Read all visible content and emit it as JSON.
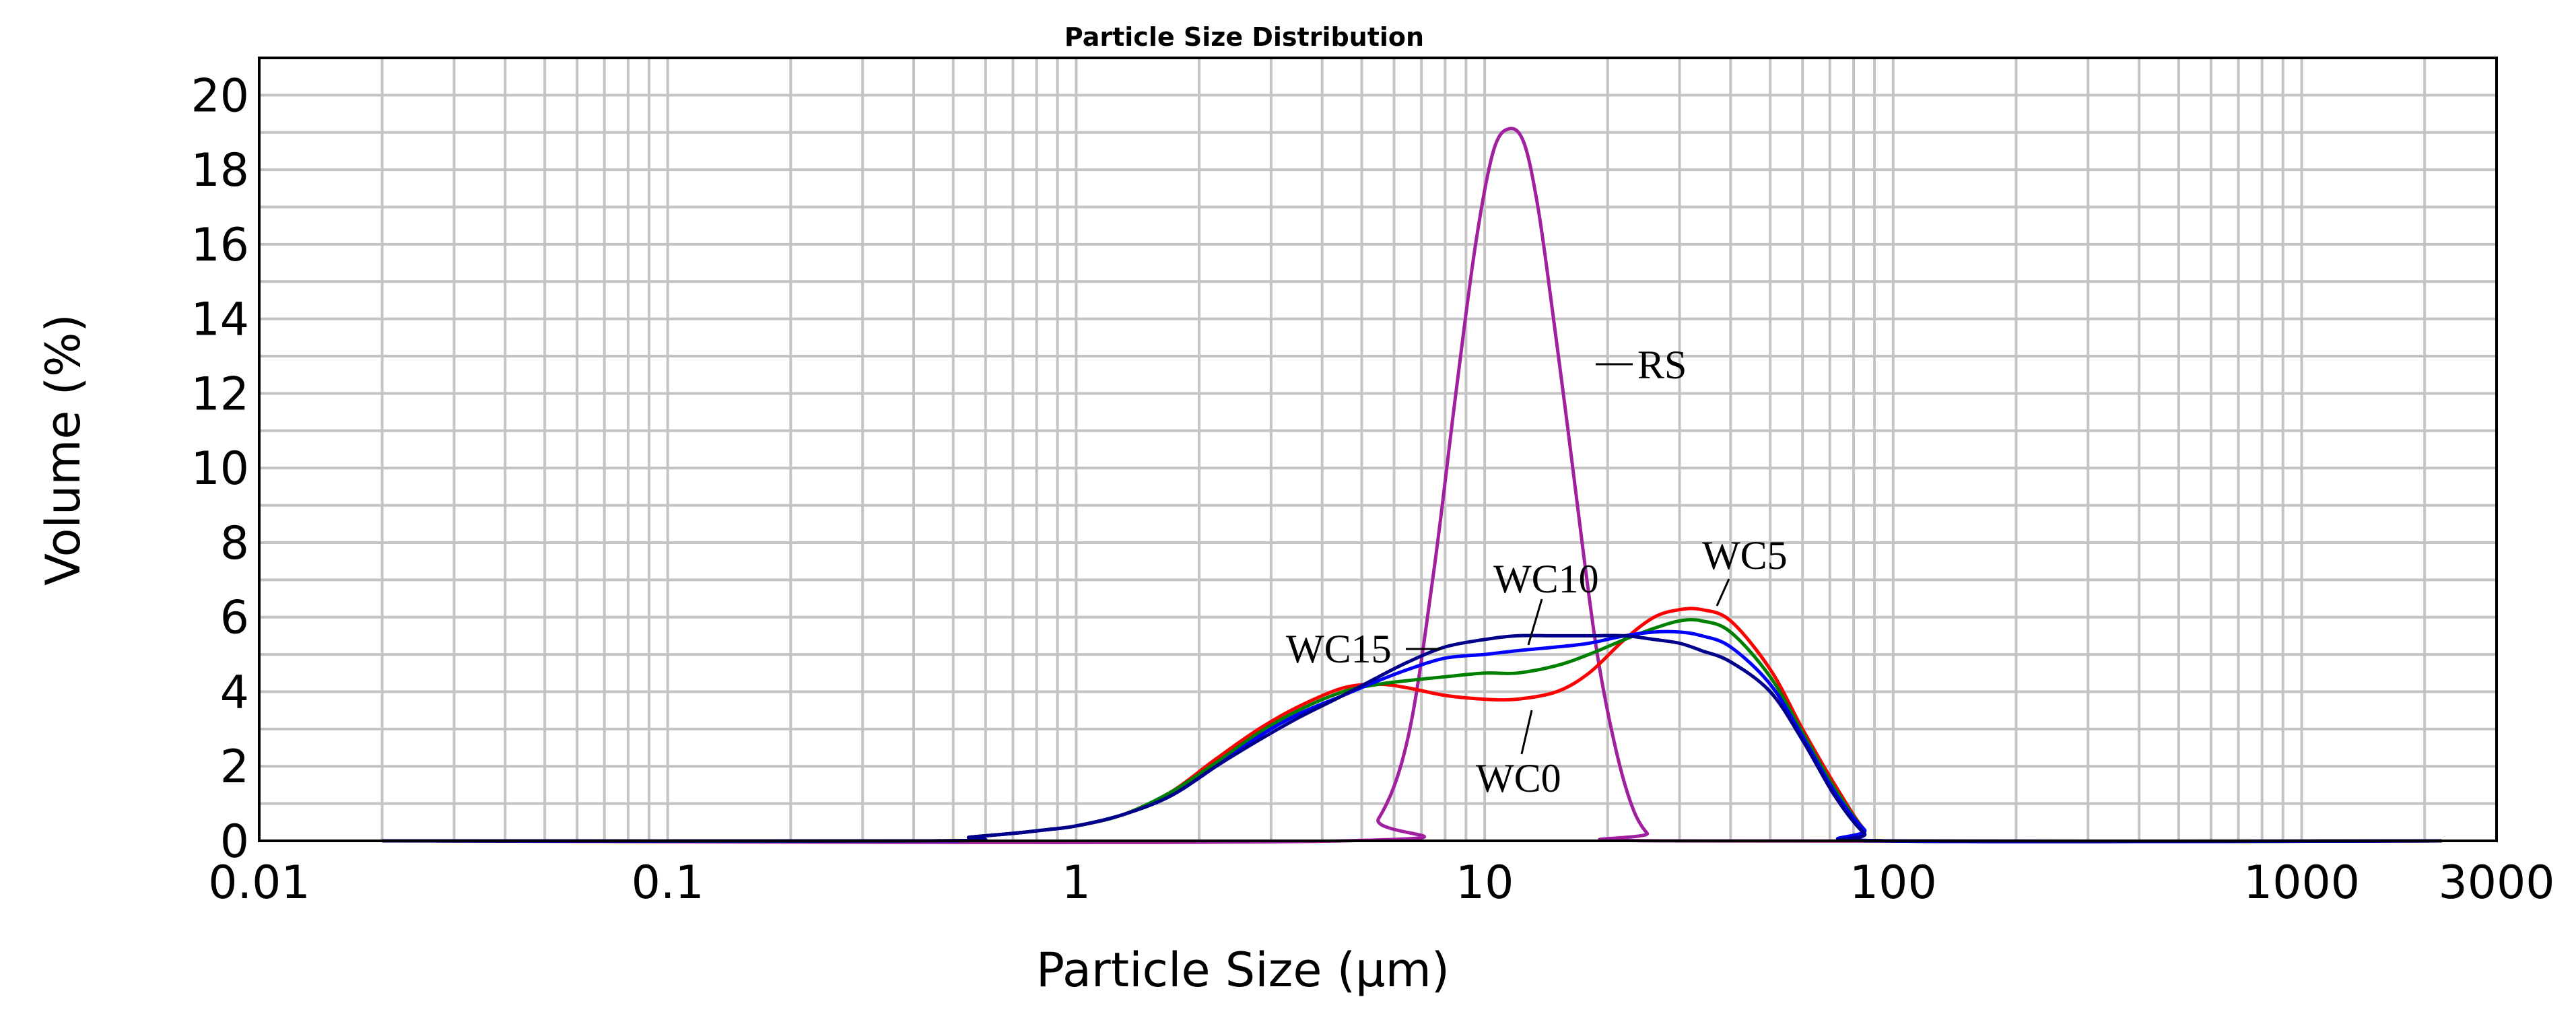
{
  "chart_data": {
    "type": "line",
    "title": "Particle Size Distribution",
    "xlabel": "Particle Size (µm)",
    "ylabel": "Volume (%)",
    "xscale": "log",
    "xlim": [
      0.01,
      3000
    ],
    "ylim": [
      0,
      21
    ],
    "xticks": [
      0.01,
      0.1,
      1,
      10,
      100,
      1000,
      3000
    ],
    "xtick_labels": [
      "0.01",
      "0.1",
      "1",
      "10",
      "100",
      "1000",
      "3000"
    ],
    "yticks": [
      0,
      2,
      4,
      6,
      8,
      10,
      12,
      14,
      16,
      18,
      20
    ],
    "ytick_labels": [
      "0",
      "2",
      "4",
      "6",
      "8",
      "10",
      "12",
      "14",
      "16",
      "18",
      "20"
    ],
    "grid": true,
    "series": [
      {
        "name": "RS",
        "color": "#a020a0",
        "x": [
          0.02,
          4.5,
          5.5,
          6.5,
          7.5,
          8.5,
          9.5,
          10.5,
          11.5,
          12.5,
          13.5,
          14.5,
          16,
          17.5,
          19,
          21,
          23,
          25,
          27,
          2200
        ],
        "y": [
          0,
          0,
          0.6,
          2.8,
          7.2,
          12.0,
          16.0,
          18.5,
          19.1,
          18.7,
          17.0,
          14.6,
          11.0,
          7.6,
          4.8,
          2.4,
          0.9,
          0.2,
          0,
          0
        ]
      },
      {
        "name": "WC0",
        "color": "#ff0000",
        "x": [
          0.02,
          0.44,
          0.55,
          0.7,
          0.85,
          1.0,
          1.3,
          1.7,
          2.2,
          2.8,
          3.5,
          4.5,
          5.5,
          6.5,
          8,
          10,
          12,
          15,
          18,
          22,
          26,
          30,
          34,
          40,
          50,
          60,
          72,
          85,
          95,
          2200
        ],
        "y": [
          0,
          0,
          0.1,
          0.2,
          0.3,
          0.4,
          0.7,
          1.3,
          2.2,
          3.0,
          3.6,
          4.1,
          4.2,
          4.1,
          3.9,
          3.8,
          3.8,
          4.0,
          4.5,
          5.4,
          6.0,
          6.2,
          6.2,
          5.9,
          4.6,
          3.0,
          1.5,
          0.3,
          0,
          0
        ]
      },
      {
        "name": "WC5",
        "color": "#008000",
        "x": [
          0.02,
          0.45,
          0.55,
          0.7,
          0.85,
          1.0,
          1.3,
          1.7,
          2.2,
          2.8,
          3.5,
          4.5,
          5.5,
          6.5,
          8,
          10,
          12,
          15,
          18,
          22,
          26,
          30,
          34,
          40,
          50,
          60,
          72,
          85,
          95,
          2200
        ],
        "y": [
          0,
          0,
          0.1,
          0.2,
          0.3,
          0.4,
          0.7,
          1.3,
          2.1,
          2.9,
          3.5,
          4.0,
          4.2,
          4.3,
          4.4,
          4.5,
          4.5,
          4.7,
          5.0,
          5.4,
          5.7,
          5.9,
          5.9,
          5.6,
          4.4,
          2.9,
          1.4,
          0.3,
          0,
          0
        ]
      },
      {
        "name": "WC10",
        "color": "#0000ff",
        "x": [
          0.02,
          0.45,
          0.55,
          0.7,
          0.85,
          1.0,
          1.3,
          1.7,
          2.2,
          2.8,
          3.5,
          4.5,
          5.5,
          6.5,
          8,
          10,
          12,
          15,
          18,
          22,
          26,
          30,
          34,
          40,
          50,
          60,
          72,
          85,
          95,
          2200
        ],
        "y": [
          0,
          0,
          0.1,
          0.2,
          0.3,
          0.4,
          0.7,
          1.2,
          2.0,
          2.8,
          3.4,
          3.9,
          4.3,
          4.6,
          4.9,
          5.0,
          5.1,
          5.2,
          5.3,
          5.5,
          5.6,
          5.6,
          5.5,
          5.2,
          4.2,
          2.8,
          1.3,
          0.3,
          0,
          0
        ]
      },
      {
        "name": "WC15",
        "color": "#00008b",
        "x": [
          0.02,
          0.45,
          0.55,
          0.7,
          0.85,
          1.0,
          1.3,
          1.7,
          2.2,
          2.8,
          3.5,
          4.5,
          5.5,
          6.5,
          8,
          10,
          12,
          15,
          18,
          22,
          26,
          30,
          34,
          40,
          50,
          60,
          72,
          85,
          95,
          2200
        ],
        "y": [
          0,
          0,
          0.1,
          0.2,
          0.3,
          0.4,
          0.7,
          1.2,
          2.0,
          2.7,
          3.3,
          3.9,
          4.4,
          4.8,
          5.2,
          5.4,
          5.5,
          5.5,
          5.5,
          5.5,
          5.4,
          5.3,
          5.1,
          4.8,
          4.0,
          2.7,
          1.2,
          0.2,
          0,
          0
        ]
      }
    ],
    "annotations": [
      {
        "text": "RS",
        "series": "RS",
        "point": [
          16.3,
          13.0
        ]
      },
      {
        "text": "WC5",
        "series": "WC5",
        "point": [
          36,
          6.05
        ]
      },
      {
        "text": "WC10",
        "series": "WC10",
        "point": [
          10.8,
          5.1
        ]
      },
      {
        "text": "WC15",
        "series": "WC15",
        "point": [
          7.8,
          5.0
        ]
      },
      {
        "text": "WC0",
        "series": "WC0",
        "point": [
          11.0,
          3.85
        ]
      }
    ]
  }
}
